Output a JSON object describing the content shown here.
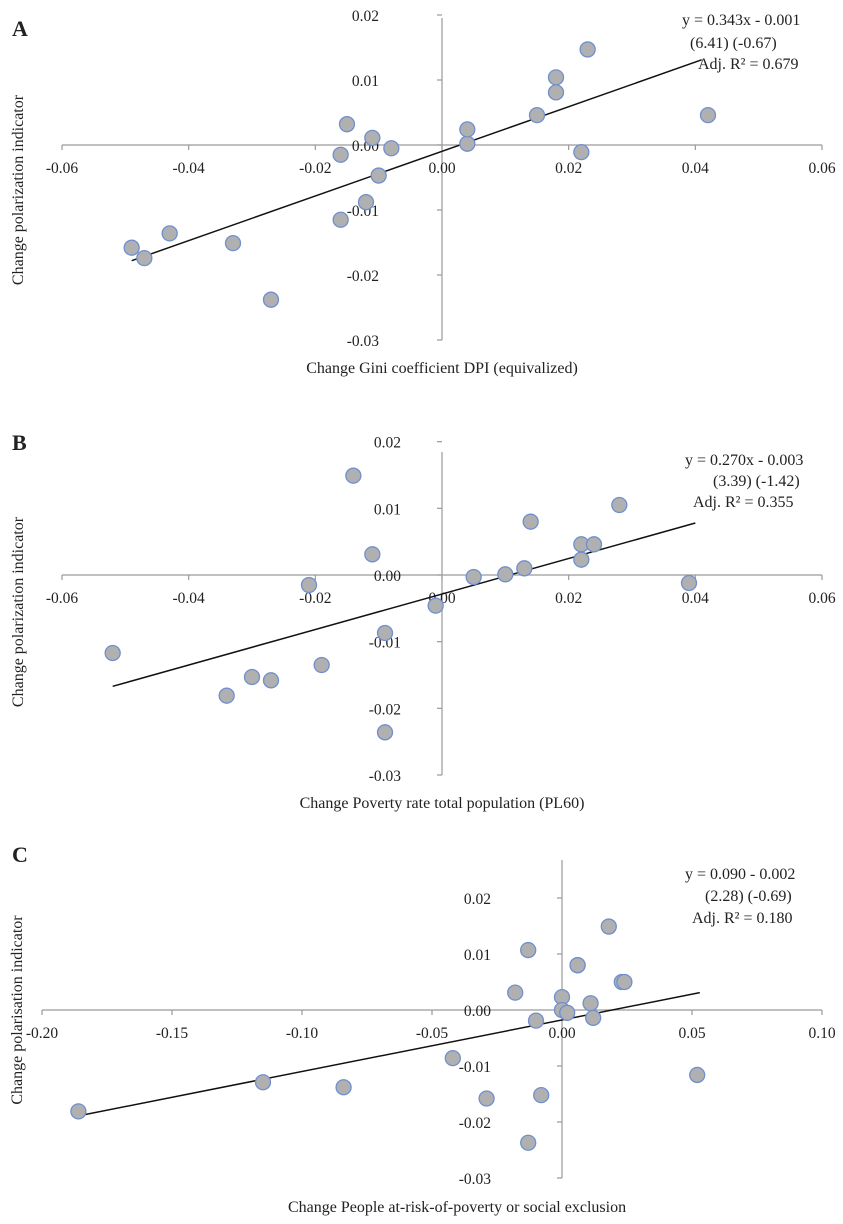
{
  "chart_data": [
    {
      "panel": "A",
      "type": "scatter",
      "xlabel": "Change Gini coefficient DPI (equivalized)",
      "ylabel": "Change polarization indicator",
      "xlim": [
        -0.06,
        0.06
      ],
      "ylim": [
        -0.03,
        0.02
      ],
      "xticks": [
        "-0.06",
        "-0.04",
        "-0.02",
        "0.00",
        "0.02",
        "0.04",
        "0.06"
      ],
      "yticks": [
        "0.02",
        "0.01",
        "0.00",
        "-0.01",
        "-0.02",
        "-0.03"
      ],
      "annotation": [
        "y = 0.343x - 0.001",
        "(6.41)      (-0.67)",
        "Adj. R² = 0.679"
      ],
      "trendline": {
        "x": [
          -0.049,
          0.041
        ],
        "y": [
          -0.0178,
          0.0131
        ]
      },
      "x": [
        -0.049,
        -0.047,
        -0.043,
        -0.033,
        -0.027,
        -0.016,
        -0.015,
        -0.016,
        -0.012,
        -0.011,
        -0.01,
        -0.008,
        0.004,
        0.004,
        0.015,
        0.018,
        0.018,
        0.022,
        0.023,
        0.042
      ],
      "y": [
        -0.0158,
        -0.0174,
        -0.0136,
        -0.0151,
        -0.0238,
        -0.0115,
        0.0032,
        -0.0015,
        -0.0088,
        0.0011,
        -0.0047,
        -0.0005,
        0.0002,
        0.0024,
        0.0046,
        0.0104,
        0.0081,
        -0.0011,
        0.0147,
        0.0046
      ]
    },
    {
      "panel": "B",
      "type": "scatter",
      "xlabel": "Change Poverty rate total population (PL60)",
      "ylabel": "Change polarization indicator",
      "xlim": [
        -0.06,
        0.06
      ],
      "ylim": [
        -0.03,
        0.02
      ],
      "xticks": [
        "-0.06",
        "-0.04",
        "-0.02",
        "0.00",
        "0.02",
        "0.04",
        "0.06"
      ],
      "yticks": [
        "0.02",
        "0.01",
        "0.00",
        "-0.01",
        "-0.02",
        "-0.03"
      ],
      "annotation": [
        "y = 0.270x - 0.003",
        "(3.39)      (-1.42)",
        "Adj. R² = 0.355"
      ],
      "trendline": {
        "x": [
          -0.052,
          0.04
        ],
        "y": [
          -0.0167,
          0.0078
        ]
      },
      "x": [
        -0.052,
        -0.034,
        -0.03,
        -0.027,
        -0.021,
        -0.019,
        -0.014,
        -0.011,
        -0.009,
        -0.009,
        -0.001,
        0.005,
        0.01,
        0.013,
        0.014,
        0.022,
        0.022,
        0.024,
        0.028,
        0.039
      ],
      "y": [
        -0.0117,
        -0.0181,
        -0.0153,
        -0.0158,
        -0.0015,
        -0.0135,
        0.0149,
        0.0031,
        -0.0087,
        -0.0236,
        -0.0046,
        -0.0003,
        0.0001,
        0.001,
        0.008,
        0.0046,
        0.0023,
        0.0046,
        0.0105,
        -0.0012
      ]
    },
    {
      "panel": "C",
      "type": "scatter",
      "xlabel": "Change People at-risk-of-poverty or social exclusion",
      "ylabel": "Change polarisation indicator",
      "xlim": [
        -0.2,
        0.1
      ],
      "ylim": [
        -0.03,
        0.02
      ],
      "xticks": [
        "-0.20",
        "-0.15",
        "-0.10",
        "-0.05",
        "0.00",
        "0.05",
        "0.10"
      ],
      "yticks": [
        "0.02",
        "0.01",
        "0.00",
        "-0.01",
        "-0.02",
        "-0.03"
      ],
      "annotation": [
        "y = 0.090 - 0.002",
        "(2.28)      (-0.69)",
        "Adj. R² = 0.180"
      ],
      "trendline": {
        "x": [
          -0.186,
          0.053
        ],
        "y": [
          -0.0189,
          0.0031
        ]
      },
      "x": [
        -0.186,
        -0.115,
        -0.084,
        -0.042,
        -0.029,
        -0.018,
        -0.013,
        -0.013,
        -0.01,
        -0.008,
        0.0,
        0.0,
        0.002,
        0.006,
        0.006,
        0.011,
        0.012,
        0.018,
        0.023,
        0.024,
        0.052
      ],
      "y": [
        -0.0181,
        -0.0129,
        -0.0138,
        -0.0086,
        -0.0158,
        0.0031,
        0.0107,
        -0.0237,
        -0.0019,
        -0.0152,
        0.0023,
        0.0,
        -0.0005,
        0.008,
        0.008,
        0.0012,
        -0.0014,
        0.0149,
        0.005,
        0.005,
        -0.0116
      ]
    }
  ]
}
